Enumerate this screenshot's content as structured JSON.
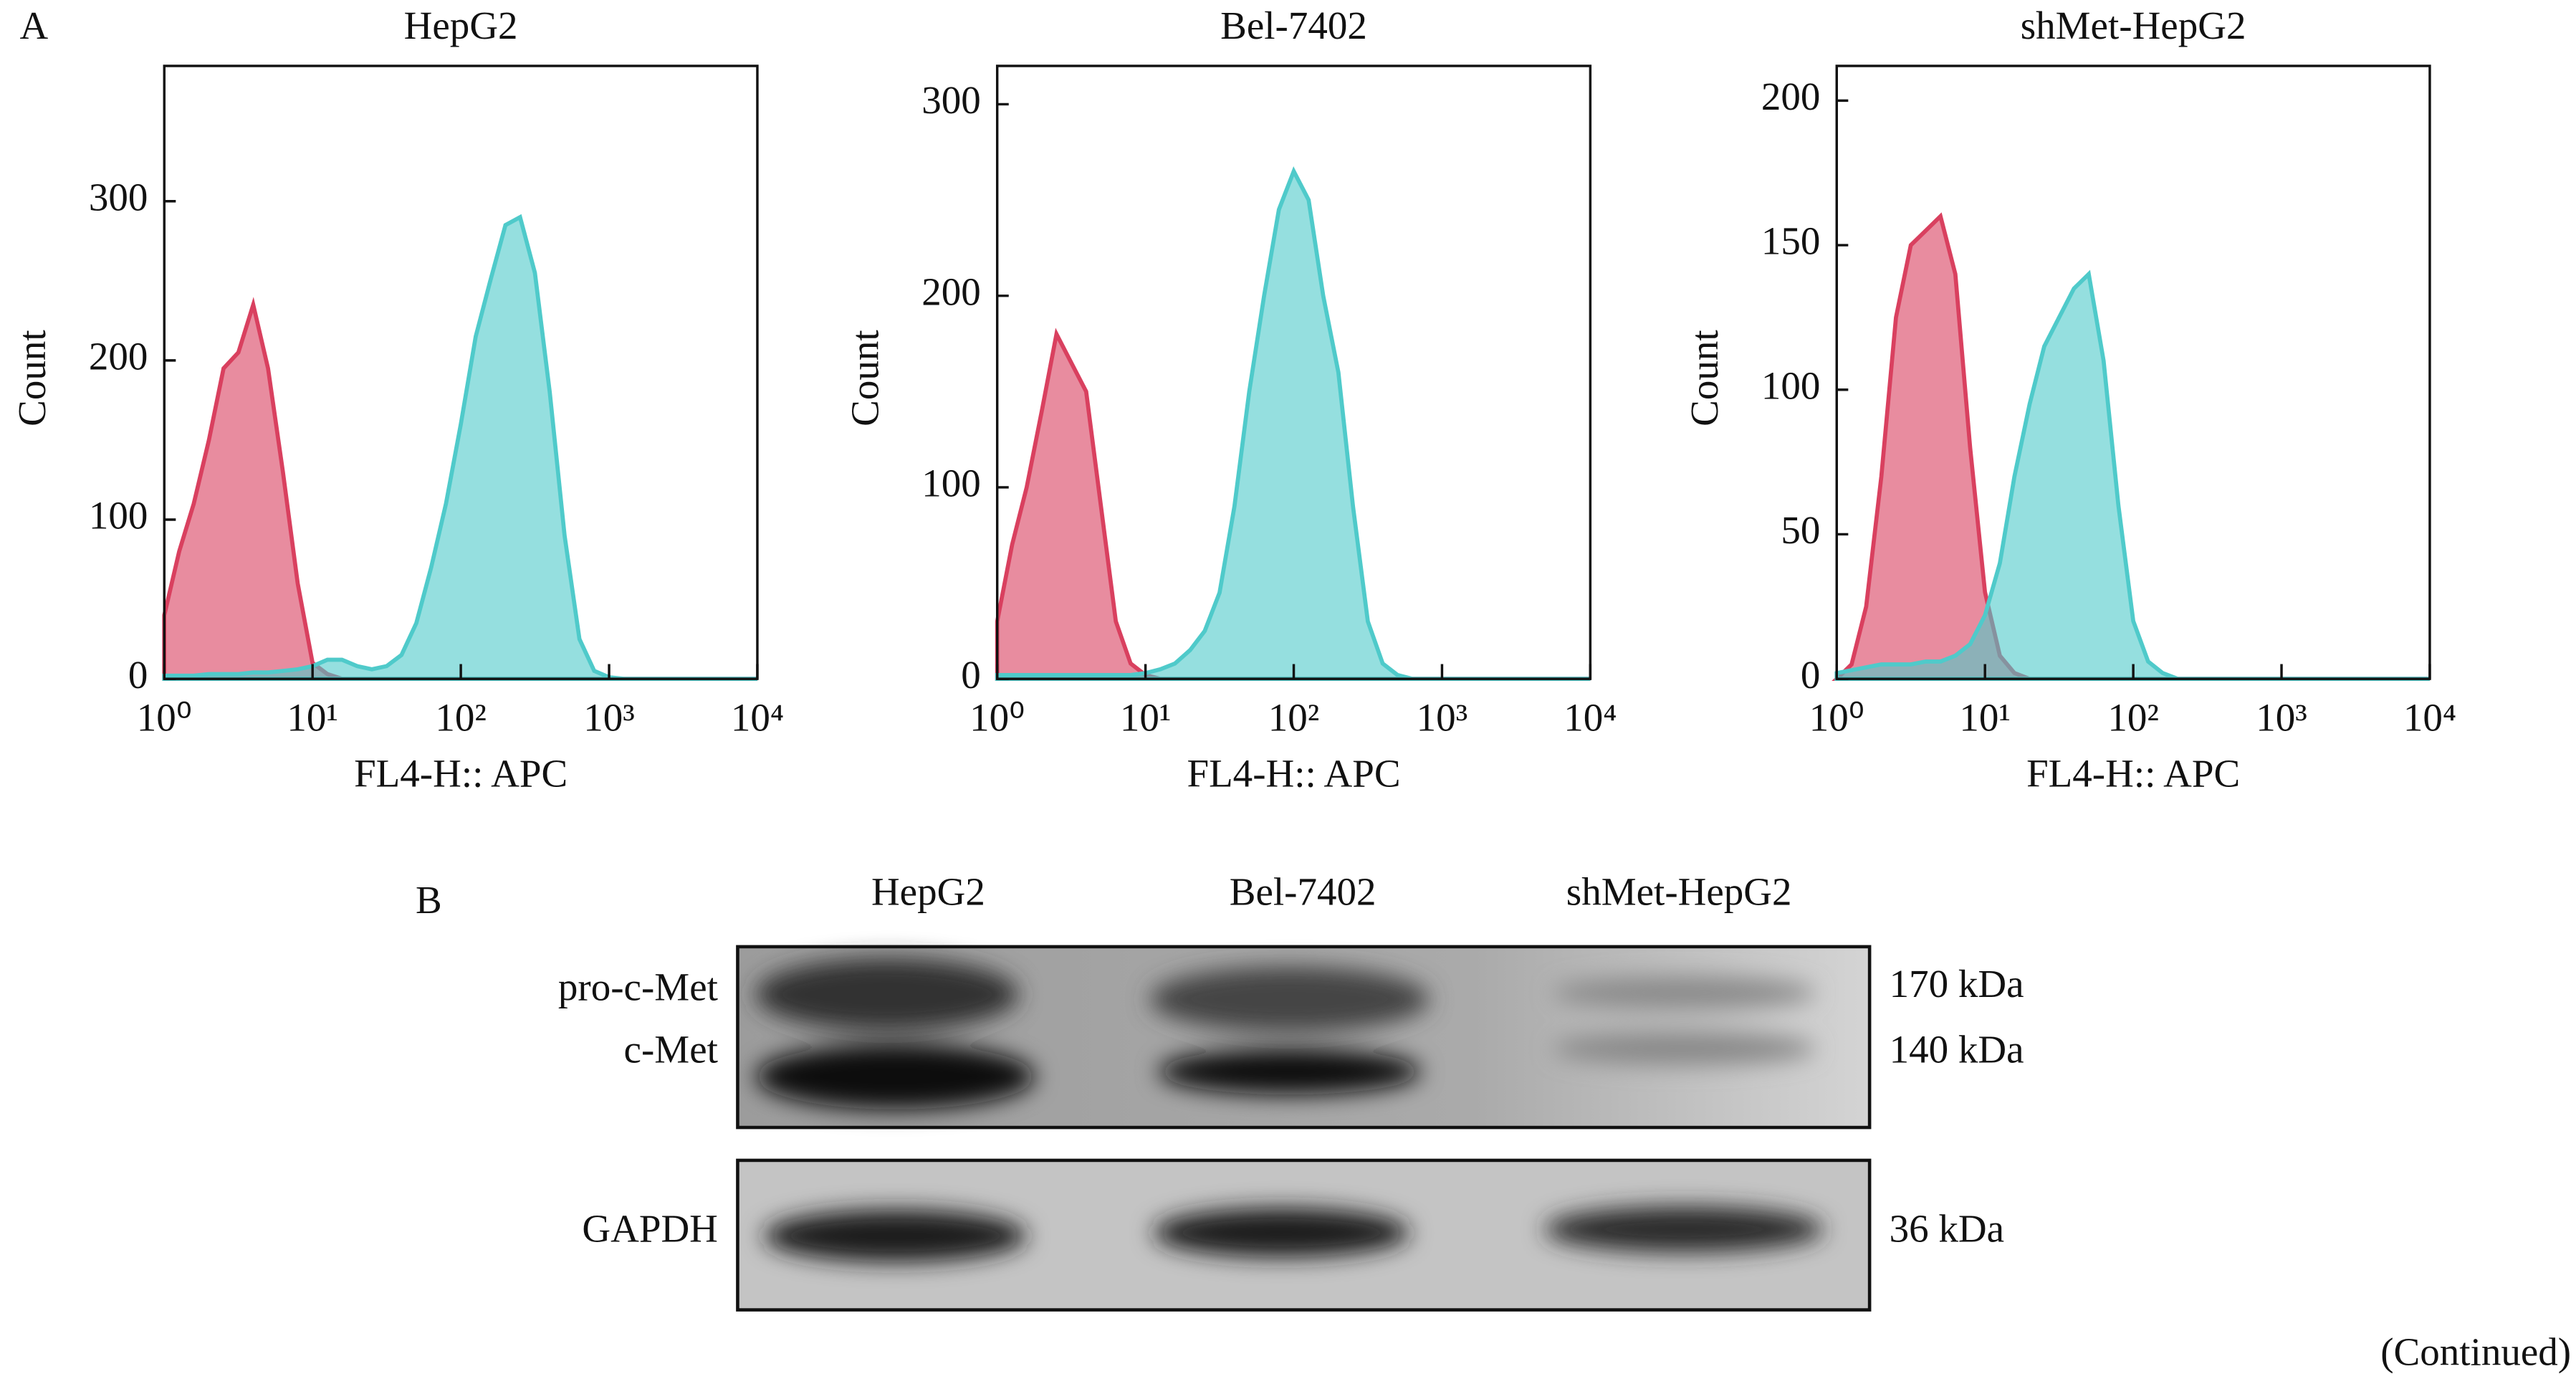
{
  "panel_a": {
    "label": "A"
  },
  "chart_data": [
    {
      "type": "area",
      "title": "HepG2",
      "x_label": "FL4-H:: APC",
      "y_label": "Count",
      "xscale": "log",
      "xlim": [
        1,
        10000
      ],
      "xticks": [
        {
          "value": 1,
          "label": "10⁰"
        },
        {
          "value": 10,
          "label": "10¹"
        },
        {
          "value": 100,
          "label": "10²"
        },
        {
          "value": 1000,
          "label": "10³"
        },
        {
          "value": 10000,
          "label": "10⁴"
        }
      ],
      "ylim": [
        0,
        385
      ],
      "yticks": [
        0,
        100,
        200,
        300
      ],
      "x": [
        1,
        1.26,
        1.58,
        2,
        2.51,
        3.16,
        3.98,
        5.01,
        6.31,
        7.94,
        10,
        12.6,
        15.8,
        20,
        25.1,
        31.6,
        39.8,
        50.1,
        63.1,
        79.4,
        100,
        126,
        158,
        200,
        251,
        316,
        398,
        501,
        631,
        794,
        1000,
        1260,
        1580,
        2000,
        2510,
        3160,
        3980,
        5010,
        6310,
        7940,
        10000
      ],
      "series": [
        {
          "color": "#d9405f",
          "values": [
            40,
            80,
            110,
            150,
            195,
            205,
            235,
            195,
            130,
            60,
            10,
            3,
            0,
            0,
            0,
            0,
            0,
            0,
            0,
            0,
            0,
            0,
            0,
            0,
            0,
            0,
            0,
            0,
            0,
            0,
            0,
            0,
            0,
            0,
            0,
            0,
            0,
            0,
            0,
            0,
            0
          ]
        },
        {
          "color": "#4fcaca",
          "values": [
            2,
            2,
            2,
            3,
            3,
            3,
            4,
            4,
            5,
            6,
            8,
            12,
            12,
            8,
            6,
            8,
            15,
            35,
            70,
            110,
            160,
            215,
            250,
            285,
            290,
            255,
            180,
            90,
            25,
            5,
            1,
            0,
            0,
            0,
            0,
            0,
            0,
            0,
            0,
            0,
            0
          ]
        }
      ]
    },
    {
      "type": "area",
      "title": "Bel-7402",
      "x_label": "FL4-H:: APC",
      "y_label": "Count",
      "xscale": "log",
      "xlim": [
        1,
        10000
      ],
      "xticks": [
        {
          "value": 1,
          "label": "10⁰"
        },
        {
          "value": 10,
          "label": "10¹"
        },
        {
          "value": 100,
          "label": "10²"
        },
        {
          "value": 1000,
          "label": "10³"
        },
        {
          "value": 10000,
          "label": "10⁴"
        }
      ],
      "ylim": [
        0,
        320
      ],
      "yticks": [
        0,
        100,
        200,
        300
      ],
      "x": [
        1,
        1.26,
        1.58,
        2,
        2.51,
        3.16,
        3.98,
        5.01,
        6.31,
        7.94,
        10,
        12.6,
        15.8,
        20,
        25.1,
        31.6,
        39.8,
        50.1,
        63.1,
        79.4,
        100,
        126,
        158,
        200,
        251,
        316,
        398,
        501,
        631,
        794,
        1000,
        1260,
        1580,
        2000,
        2510,
        3160,
        3980,
        5010,
        6310,
        7940,
        10000
      ],
      "series": [
        {
          "color": "#d9405f",
          "values": [
            30,
            70,
            100,
            140,
            180,
            165,
            150,
            90,
            30,
            8,
            2,
            0,
            0,
            0,
            0,
            0,
            0,
            0,
            0,
            0,
            0,
            0,
            0,
            0,
            0,
            0,
            0,
            0,
            0,
            0,
            0,
            0,
            0,
            0,
            0,
            0,
            0,
            0,
            0,
            0,
            0
          ]
        },
        {
          "color": "#4fcaca",
          "values": [
            2,
            2,
            2,
            2,
            2,
            2,
            2,
            2,
            2,
            2,
            3,
            5,
            8,
            15,
            25,
            45,
            90,
            150,
            200,
            245,
            265,
            250,
            200,
            160,
            90,
            30,
            8,
            2,
            0,
            0,
            0,
            0,
            0,
            0,
            0,
            0,
            0,
            0,
            0,
            0,
            0
          ]
        }
      ]
    },
    {
      "type": "area",
      "title": "shMet-HepG2",
      "x_label": "FL4-H:: APC",
      "y_label": "Count",
      "xscale": "log",
      "xlim": [
        1,
        10000
      ],
      "xticks": [
        {
          "value": 1,
          "label": "10⁰"
        },
        {
          "value": 10,
          "label": "10¹"
        },
        {
          "value": 100,
          "label": "10²"
        },
        {
          "value": 1000,
          "label": "10³"
        },
        {
          "value": 10000,
          "label": "10⁴"
        }
      ],
      "ylim": [
        0,
        212
      ],
      "yticks": [
        0,
        50,
        100,
        150,
        200
      ],
      "x": [
        1,
        1.26,
        1.58,
        2,
        2.51,
        3.16,
        3.98,
        5.01,
        6.31,
        7.94,
        10,
        12.6,
        15.8,
        20,
        25.1,
        31.6,
        39.8,
        50.1,
        63.1,
        79.4,
        100,
        126,
        158,
        200,
        251,
        316,
        398,
        501,
        631,
        794,
        1000,
        1260,
        1580,
        2000,
        2510,
        3160,
        3980,
        5010,
        6310,
        7940,
        10000
      ],
      "series": [
        {
          "color": "#d9405f",
          "values": [
            0,
            5,
            25,
            70,
            125,
            150,
            155,
            160,
            140,
            80,
            30,
            8,
            2,
            0,
            0,
            0,
            0,
            0,
            0,
            0,
            0,
            0,
            0,
            0,
            0,
            0,
            0,
            0,
            0,
            0,
            0,
            0,
            0,
            0,
            0,
            0,
            0,
            0,
            0,
            0,
            0
          ]
        },
        {
          "color": "#4fcaca",
          "values": [
            2,
            3,
            4,
            5,
            5,
            5,
            6,
            6,
            8,
            12,
            22,
            40,
            70,
            95,
            115,
            125,
            135,
            140,
            110,
            60,
            20,
            6,
            2,
            0,
            0,
            0,
            0,
            0,
            0,
            0,
            0,
            0,
            0,
            0,
            0,
            0,
            0,
            0,
            0,
            0,
            0
          ]
        }
      ]
    }
  ],
  "western_blot": {
    "label": "B",
    "lanes": [
      "HepG2",
      "Bel-7402",
      "shMet-HepG2"
    ],
    "bands": [
      {
        "name": "pro-c-Met",
        "size": "170 kDa"
      },
      {
        "name": "c-Met",
        "size": "140 kDa"
      },
      {
        "name": "GAPDH",
        "size": "36 kDa"
      }
    ]
  },
  "footer": {
    "note": "(Continued)"
  }
}
